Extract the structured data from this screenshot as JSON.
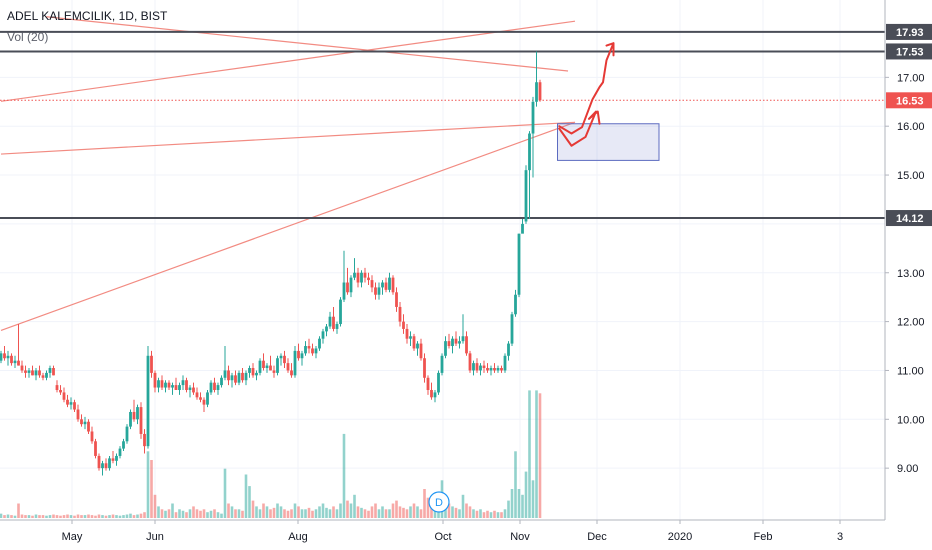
{
  "header": {
    "title": "ADEL KALEMCILIK, 1D, BIST",
    "volume_label": "Vol (20)"
  },
  "event_marker": {
    "label": "D",
    "date": "Oct"
  },
  "chart_data": {
    "type": "candlestick",
    "symbol": "ADEL KALEMCILIK",
    "interval": "1D",
    "exchange": "BIST",
    "x_ticks": [
      "May",
      "Jun",
      "Aug",
      "Oct",
      "Nov",
      "Dec",
      "2020",
      "Feb",
      "3"
    ],
    "y_ticks": [
      "9.00",
      "10.00",
      "11.00",
      "12.00",
      "13.00",
      "15.00",
      "16.00",
      "17.00"
    ],
    "ylim": [
      8.0,
      18.45
    ],
    "price_tags": [
      {
        "label": "17.93",
        "value": 17.93,
        "kind": "horizontal-line",
        "color": "#4a4d57"
      },
      {
        "label": "17.53",
        "value": 17.53,
        "kind": "horizontal-line",
        "color": "#4a4d57"
      },
      {
        "label": "16.53",
        "value": 16.53,
        "kind": "last-price",
        "color": "#ef5350"
      },
      {
        "label": "14.12",
        "value": 14.12,
        "kind": "horizontal-line",
        "color": "#4a4d57"
      }
    ],
    "colors": {
      "up": "#26a69a",
      "down": "#ef5350",
      "trendline": "#f28b82",
      "arrow": "#e53935",
      "box": "#5c6bc0"
    },
    "candles": [
      [
        11.2,
        11.4,
        11.15,
        11.35
      ],
      [
        11.35,
        11.5,
        11.2,
        11.25
      ],
      [
        11.25,
        11.4,
        11.1,
        11.3
      ],
      [
        11.3,
        11.35,
        11.1,
        11.15
      ],
      [
        11.15,
        11.3,
        11.05,
        11.2
      ],
      [
        11.2,
        11.95,
        11.1,
        11.1
      ],
      [
        11.1,
        11.2,
        10.95,
        11.0
      ],
      [
        11.0,
        11.1,
        10.85,
        10.95
      ],
      [
        10.95,
        11.05,
        10.85,
        11.0
      ],
      [
        11.0,
        11.1,
        10.9,
        10.9
      ],
      [
        10.9,
        11.05,
        10.8,
        11.0
      ],
      [
        11.0,
        11.1,
        10.85,
        10.9
      ],
      [
        10.9,
        10.95,
        10.8,
        10.85
      ],
      [
        10.85,
        11.0,
        10.8,
        10.95
      ],
      [
        10.95,
        11.1,
        10.85,
        11.05
      ],
      [
        11.05,
        11.1,
        10.9,
        10.9
      ],
      [
        10.7,
        10.8,
        10.55,
        10.6
      ],
      [
        10.6,
        10.7,
        10.5,
        10.55
      ],
      [
        10.55,
        10.65,
        10.35,
        10.4
      ],
      [
        10.4,
        10.5,
        10.25,
        10.3
      ],
      [
        10.3,
        10.45,
        10.2,
        10.35
      ],
      [
        10.35,
        10.4,
        10.15,
        10.2
      ],
      [
        10.2,
        10.3,
        9.95,
        10.0
      ],
      [
        10.0,
        10.1,
        9.85,
        9.9
      ],
      [
        9.9,
        10.05,
        9.8,
        9.95
      ],
      [
        9.95,
        10.0,
        9.7,
        9.75
      ],
      [
        9.75,
        9.85,
        9.5,
        9.55
      ],
      [
        9.55,
        9.6,
        9.2,
        9.25
      ],
      [
        9.25,
        9.3,
        8.95,
        9.0
      ],
      [
        9.0,
        9.15,
        8.85,
        9.1
      ],
      [
        9.1,
        9.2,
        8.95,
        9.0
      ],
      [
        9.0,
        9.25,
        8.95,
        9.2
      ],
      [
        9.2,
        9.35,
        9.1,
        9.15
      ],
      [
        9.15,
        9.3,
        9.05,
        9.25
      ],
      [
        9.25,
        9.45,
        9.2,
        9.4
      ],
      [
        9.4,
        9.6,
        9.35,
        9.55
      ],
      [
        9.55,
        9.9,
        9.5,
        9.85
      ],
      [
        9.85,
        10.2,
        9.8,
        10.15
      ],
      [
        10.15,
        10.4,
        9.95,
        10.0
      ],
      [
        10.0,
        10.3,
        9.9,
        10.25
      ],
      [
        10.25,
        10.35,
        9.6,
        9.7
      ],
      [
        9.7,
        9.8,
        9.3,
        9.45
      ],
      [
        9.45,
        11.5,
        9.4,
        11.3
      ],
      [
        11.3,
        11.4,
        10.85,
        10.95
      ],
      [
        10.95,
        11.0,
        10.55,
        10.65
      ],
      [
        10.65,
        10.85,
        10.55,
        10.8
      ],
      [
        10.8,
        10.9,
        10.6,
        10.65
      ],
      [
        10.65,
        10.8,
        10.55,
        10.75
      ],
      [
        10.75,
        10.8,
        10.6,
        10.65
      ],
      [
        10.65,
        10.75,
        10.5,
        10.7
      ],
      [
        10.7,
        10.85,
        10.6,
        10.6
      ],
      [
        10.6,
        10.75,
        10.5,
        10.7
      ],
      [
        10.7,
        10.9,
        10.6,
        10.8
      ],
      [
        10.8,
        10.85,
        10.55,
        10.6
      ],
      [
        10.6,
        10.7,
        10.45,
        10.65
      ],
      [
        10.65,
        10.75,
        10.5,
        10.55
      ],
      [
        10.55,
        10.65,
        10.4,
        10.45
      ],
      [
        10.45,
        10.55,
        10.35,
        10.4
      ],
      [
        10.4,
        10.45,
        10.15,
        10.3
      ],
      [
        10.3,
        10.6,
        10.25,
        10.55
      ],
      [
        10.55,
        10.8,
        10.5,
        10.75
      ],
      [
        10.75,
        10.85,
        10.55,
        10.6
      ],
      [
        10.6,
        10.75,
        10.5,
        10.7
      ],
      [
        10.7,
        10.9,
        10.65,
        10.85
      ],
      [
        10.85,
        11.5,
        10.8,
        11.0
      ],
      [
        11.0,
        11.1,
        10.7,
        10.8
      ],
      [
        10.8,
        10.95,
        10.65,
        10.9
      ],
      [
        10.9,
        11.0,
        10.7,
        10.75
      ],
      [
        10.75,
        11.0,
        10.7,
        10.95
      ],
      [
        10.95,
        11.05,
        10.75,
        10.8
      ],
      [
        10.8,
        11.0,
        10.7,
        10.95
      ],
      [
        10.95,
        11.1,
        10.85,
        11.05
      ],
      [
        11.05,
        11.15,
        10.85,
        10.9
      ],
      [
        10.9,
        11.0,
        10.8,
        10.95
      ],
      [
        10.95,
        11.25,
        10.9,
        11.2
      ],
      [
        11.2,
        11.35,
        11.0,
        11.05
      ],
      [
        11.05,
        11.15,
        10.95,
        11.1
      ],
      [
        11.1,
        11.3,
        11.0,
        11.0
      ],
      [
        11.0,
        11.1,
        10.85,
        10.95
      ],
      [
        10.95,
        11.3,
        10.9,
        11.25
      ],
      [
        11.25,
        11.35,
        11.1,
        11.3
      ],
      [
        11.3,
        11.4,
        11.05,
        11.15
      ],
      [
        11.15,
        11.25,
        10.95,
        11.0
      ],
      [
        11.0,
        11.15,
        10.85,
        10.9
      ],
      [
        10.9,
        11.5,
        10.85,
        11.4
      ],
      [
        11.4,
        11.55,
        11.2,
        11.25
      ],
      [
        11.25,
        11.4,
        11.1,
        11.35
      ],
      [
        11.35,
        11.6,
        11.3,
        11.5
      ],
      [
        11.5,
        11.65,
        11.35,
        11.45
      ],
      [
        11.45,
        11.55,
        11.3,
        11.35
      ],
      [
        11.35,
        11.5,
        11.25,
        11.45
      ],
      [
        11.45,
        11.7,
        11.4,
        11.65
      ],
      [
        11.65,
        11.85,
        11.55,
        11.8
      ],
      [
        11.8,
        11.95,
        11.7,
        11.9
      ],
      [
        11.9,
        12.2,
        11.85,
        12.1
      ],
      [
        12.1,
        12.3,
        11.8,
        11.85
      ],
      [
        11.85,
        12.0,
        11.75,
        11.95
      ],
      [
        11.95,
        12.5,
        11.9,
        12.45
      ],
      [
        12.45,
        13.45,
        12.4,
        12.8
      ],
      [
        12.8,
        13.1,
        12.55,
        12.6
      ],
      [
        12.6,
        12.95,
        12.5,
        12.9
      ],
      [
        12.9,
        13.3,
        12.85,
        13.0
      ],
      [
        13.0,
        13.1,
        12.7,
        12.8
      ],
      [
        12.8,
        13.05,
        12.7,
        13.0
      ],
      [
        13.0,
        13.1,
        12.8,
        12.9
      ],
      [
        12.9,
        13.0,
        12.75,
        12.85
      ],
      [
        12.85,
        12.95,
        12.6,
        12.7
      ],
      [
        12.7,
        12.8,
        12.45,
        12.55
      ],
      [
        12.55,
        12.8,
        12.45,
        12.7
      ],
      [
        12.7,
        12.85,
        12.55,
        12.8
      ],
      [
        12.8,
        12.9,
        12.6,
        12.65
      ],
      [
        12.65,
        13.0,
        12.6,
        12.9
      ],
      [
        12.9,
        12.95,
        12.55,
        12.6
      ],
      [
        12.6,
        12.7,
        12.2,
        12.3
      ],
      [
        12.3,
        12.4,
        11.9,
        12.0
      ],
      [
        12.0,
        12.15,
        11.75,
        11.85
      ],
      [
        11.85,
        11.95,
        11.55,
        11.65
      ],
      [
        11.65,
        11.8,
        11.5,
        11.7
      ],
      [
        11.7,
        11.75,
        11.4,
        11.45
      ],
      [
        11.45,
        11.6,
        11.3,
        11.55
      ],
      [
        11.55,
        11.65,
        11.2,
        11.25
      ],
      [
        11.25,
        11.35,
        10.75,
        10.85
      ],
      [
        10.85,
        10.9,
        10.5,
        10.6
      ],
      [
        10.6,
        10.75,
        10.4,
        10.45
      ],
      [
        10.45,
        10.6,
        10.35,
        10.55
      ],
      [
        10.55,
        11.0,
        10.5,
        10.95
      ],
      [
        10.95,
        11.35,
        10.9,
        11.3
      ],
      [
        11.3,
        11.7,
        11.25,
        11.6
      ],
      [
        11.6,
        11.75,
        11.45,
        11.5
      ],
      [
        11.5,
        11.7,
        11.35,
        11.65
      ],
      [
        11.65,
        11.8,
        11.5,
        11.55
      ],
      [
        11.55,
        11.7,
        11.45,
        11.6
      ],
      [
        11.6,
        12.15,
        11.55,
        11.7
      ],
      [
        11.7,
        11.8,
        11.3,
        11.35
      ],
      [
        11.35,
        11.4,
        10.95,
        11.0
      ],
      [
        11.0,
        11.2,
        10.9,
        11.15
      ],
      [
        11.15,
        11.25,
        10.95,
        11.0
      ],
      [
        11.0,
        11.15,
        10.9,
        11.1
      ],
      [
        11.1,
        11.2,
        10.95,
        11.05
      ],
      [
        11.05,
        11.15,
        10.95,
        11.0
      ],
      [
        11.0,
        11.1,
        10.9,
        11.05
      ],
      [
        11.05,
        11.15,
        10.95,
        11.0
      ],
      [
        11.0,
        11.1,
        10.95,
        11.05
      ],
      [
        11.05,
        11.1,
        10.95,
        11.0
      ],
      [
        11.0,
        11.35,
        10.95,
        11.3
      ],
      [
        11.3,
        11.6,
        11.2,
        11.55
      ],
      [
        11.55,
        12.2,
        11.5,
        12.15
      ],
      [
        12.15,
        12.65,
        12.1,
        12.55
      ],
      [
        12.55,
        13.8,
        12.5,
        13.8
      ],
      [
        13.8,
        14.1,
        13.9,
        14.0
      ],
      [
        14.05,
        15.2,
        14.0,
        15.1
      ],
      [
        15.1,
        15.9,
        14.1,
        15.85
      ],
      [
        15.85,
        16.6,
        14.95,
        16.5
      ],
      [
        16.5,
        17.53,
        16.4,
        16.9
      ],
      [
        16.9,
        16.95,
        16.5,
        16.53
      ]
    ],
    "volume": [
      0.15,
      0.1,
      0.12,
      0.1,
      0.08,
      0.5,
      0.12,
      0.1,
      0.1,
      0.08,
      0.12,
      0.1,
      0.1,
      0.08,
      0.1,
      0.12,
      0.1,
      0.08,
      0.1,
      0.12,
      0.1,
      0.08,
      0.12,
      0.1,
      0.1,
      0.12,
      0.1,
      0.08,
      0.12,
      0.1,
      0.08,
      0.1,
      0.12,
      0.1,
      0.08,
      0.1,
      0.12,
      0.15,
      0.1,
      0.12,
      0.15,
      0.2,
      2.3,
      2.0,
      0.8,
      0.4,
      0.3,
      0.25,
      0.3,
      0.5,
      0.2,
      0.3,
      0.25,
      0.2,
      0.3,
      0.4,
      0.3,
      0.25,
      0.3,
      0.2,
      0.25,
      0.3,
      0.2,
      0.15,
      1.7,
      0.5,
      0.4,
      0.3,
      0.3,
      0.25,
      1.5,
      1.1,
      0.6,
      0.4,
      0.3,
      0.5,
      0.4,
      0.3,
      0.35,
      0.5,
      0.4,
      0.3,
      0.25,
      0.3,
      0.5,
      0.4,
      0.3,
      0.3,
      0.35,
      0.25,
      0.3,
      0.4,
      0.5,
      0.35,
      0.3,
      0.4,
      0.3,
      0.5,
      2.9,
      0.6,
      0.5,
      0.8,
      0.4,
      0.35,
      0.3,
      0.25,
      0.4,
      0.5,
      0.3,
      0.4,
      0.3,
      0.3,
      0.5,
      0.6,
      0.4,
      0.35,
      0.3,
      0.4,
      0.5,
      0.4,
      0.3,
      1.0,
      0.7,
      0.5,
      0.4,
      0.9,
      1.3,
      0.8,
      0.5,
      0.4,
      0.35,
      0.3,
      0.8,
      0.5,
      0.4,
      0.3,
      0.25,
      0.3,
      0.2,
      0.25,
      0.2,
      0.25,
      0.2,
      0.2,
      0.3,
      0.6,
      1.0,
      2.3,
      1.0,
      0.8,
      1.6,
      4.4,
      1.3,
      4.4,
      4.3
    ],
    "trendlines": [
      {
        "x1": 0,
        "y1": 11.82,
        "x2": 164,
        "y2": 16.08
      },
      {
        "x1": 0,
        "y1": 15.43,
        "x2": 164,
        "y2": 16.08
      },
      {
        "x1": 0,
        "y1": 16.51,
        "x2": 164,
        "y2": 18.15
      },
      {
        "x1": 13,
        "y1": 18.24,
        "x2": 162,
        "y2": 17.13
      }
    ],
    "annotation_box": {
      "x1": 159,
      "x2": 188,
      "y1": 15.3,
      "y2": 16.05
    },
    "annotation_arrows": [
      {
        "points": [
          [
            159.5,
            15.95
          ],
          [
            163,
            15.6
          ],
          [
            167,
            15.78
          ],
          [
            170,
            16.3
          ],
          [
            168,
            16.15
          ],
          [
            170.5,
            16.3
          ],
          [
            171,
            16.05
          ]
        ]
      },
      {
        "points": [
          [
            159.5,
            16.0
          ],
          [
            163,
            15.85
          ],
          [
            166,
            15.98
          ],
          [
            169,
            16.55
          ],
          [
            171,
            16.8
          ],
          [
            172,
            16.9
          ],
          [
            173,
            17.35
          ],
          [
            175,
            17.7
          ],
          [
            173,
            17.65
          ],
          [
            175,
            17.7
          ],
          [
            175,
            17.45
          ]
        ]
      }
    ]
  }
}
